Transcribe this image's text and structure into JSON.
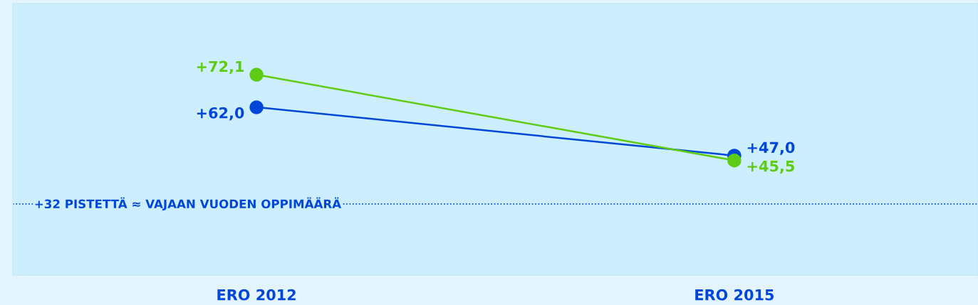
{
  "chart_data": {
    "type": "line",
    "categories": [
      "ERO 2012",
      "ERO 2015"
    ],
    "series": [
      {
        "color": "#0047d9",
        "values": [
          62.0,
          47.0
        ],
        "value_labels": [
          "+62,0",
          "+47,0"
        ]
      },
      {
        "color": "#5ecb14",
        "values": [
          72.1,
          45.5
        ],
        "value_labels": [
          "+72,1",
          "+45,5"
        ]
      }
    ],
    "marker": "circle",
    "line_style": "solid",
    "grid": false,
    "legend": false,
    "tick_labels": "x",
    "ref_lines": [
      {
        "axis": "y",
        "value": 32,
        "label": "+32 PISTETTÄ ≈ VAJAAN VUODEN OPPIMÄÄRÄ",
        "color": "#0047d9",
        "line_style": "dotted"
      }
    ]
  }
}
